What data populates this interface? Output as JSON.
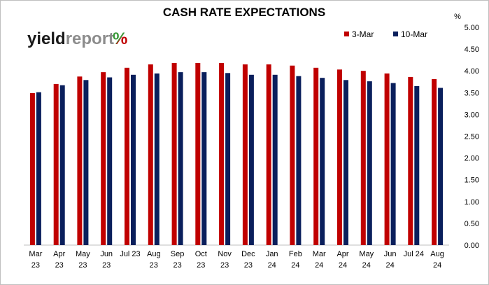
{
  "chart_data": {
    "type": "bar",
    "title": "CASH RATE EXPECTATIONS",
    "unit_label": "%",
    "categories": [
      [
        "Mar",
        "23"
      ],
      [
        "Apr",
        "23"
      ],
      [
        "May",
        "23"
      ],
      [
        "Jun",
        "23"
      ],
      [
        "Jul 23",
        ""
      ],
      [
        "Aug",
        "23"
      ],
      [
        "Sep",
        "23"
      ],
      [
        "Oct",
        "23"
      ],
      [
        "Nov",
        "23"
      ],
      [
        "Dec",
        "23"
      ],
      [
        "Jan",
        "24"
      ],
      [
        "Feb",
        "24"
      ],
      [
        "Mar",
        "24"
      ],
      [
        "Apr",
        "24"
      ],
      [
        "May",
        "24"
      ],
      [
        "Jun",
        "24"
      ],
      [
        "Jul 24",
        ""
      ],
      [
        "Aug",
        "24"
      ]
    ],
    "series": [
      {
        "name": "3-Mar",
        "color": "#c00000",
        "values": [
          3.49,
          3.7,
          3.87,
          3.97,
          4.07,
          4.15,
          4.18,
          4.18,
          4.18,
          4.15,
          4.15,
          4.12,
          4.07,
          4.03,
          4.0,
          3.94,
          3.86,
          3.81
        ]
      },
      {
        "name": "10-Mar",
        "color": "#0a1f5c",
        "values": [
          3.51,
          3.67,
          3.79,
          3.85,
          3.91,
          3.94,
          3.97,
          3.97,
          3.95,
          3.91,
          3.91,
          3.88,
          3.84,
          3.79,
          3.76,
          3.72,
          3.65,
          3.61
        ]
      }
    ],
    "y_ticks": [
      "0.00",
      "0.50",
      "1.00",
      "1.50",
      "2.00",
      "2.50",
      "3.00",
      "3.50",
      "4.00",
      "4.50",
      "5.00"
    ],
    "ylim": [
      0,
      5
    ],
    "grid": false,
    "legend_position": "top-right",
    "y_axis_side": "right"
  },
  "logo": {
    "word_dark": "yield",
    "word_light": "report",
    "symbol": "%",
    "symbol_colors": [
      "#3a9a3a",
      "#c00000"
    ]
  }
}
